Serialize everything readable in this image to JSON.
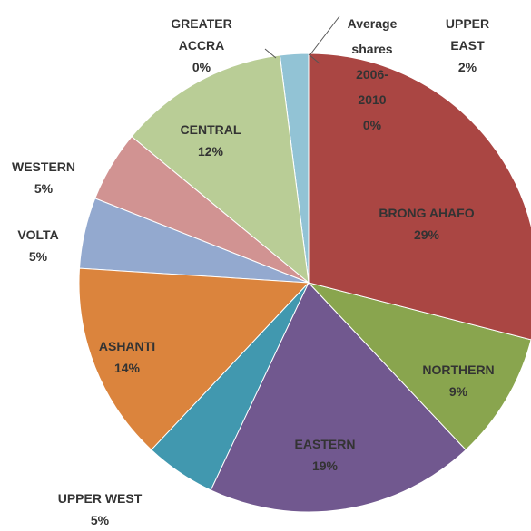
{
  "chart_data": {
    "type": "pie",
    "categories": [
      "Average shares 2006-2010",
      "BRONG AHAFO",
      "NORTHERN",
      "EASTERN",
      "UPPER WEST",
      "ASHANTI",
      "VOLTA",
      "WESTERN",
      "CENTRAL",
      "GREATER ACCRA",
      "UPPER EAST"
    ],
    "values": [
      0,
      29,
      9,
      19,
      5,
      14,
      5,
      5,
      12,
      0,
      2
    ],
    "value_labels": [
      "0%",
      "29%",
      "9%",
      "19%",
      "5%",
      "14%",
      "5%",
      "5%",
      "12%",
      "0%",
      "2%"
    ],
    "colors": [
      "#888888",
      "#aa4643",
      "#89a54e",
      "#71588f",
      "#4198af",
      "#db843d",
      "#93a9cf",
      "#d19392",
      "#b9cd96",
      "#a99bbd",
      "#92c3d5"
    ]
  }
}
